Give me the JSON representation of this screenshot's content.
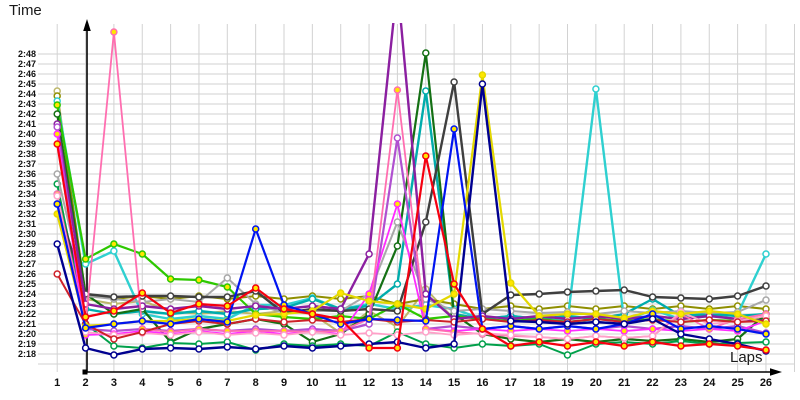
{
  "chart_data": {
    "type": "line",
    "title": "",
    "xlabel": "Laps",
    "ylabel": "Time",
    "grid": true,
    "legend": "none",
    "x_ticks": [
      1,
      2,
      3,
      4,
      5,
      6,
      7,
      8,
      9,
      10,
      11,
      12,
      13,
      14,
      15,
      16,
      17,
      18,
      19,
      20,
      21,
      22,
      23,
      24,
      25,
      26
    ],
    "y_ticks": [
      "2:18",
      "2:19",
      "2:20",
      "2:21",
      "2:22",
      "2:23",
      "2:24",
      "2:25",
      "2:26",
      "2:27",
      "2:28",
      "2:29",
      "2:30",
      "2:31",
      "2:32",
      "2:33",
      "2:34",
      "2:35",
      "2:36",
      "2:37",
      "2:38",
      "2:39",
      "2:40",
      "2:41",
      "2:42",
      "2:43",
      "2:44",
      "2:45",
      "2:46",
      "2:47",
      "2:48"
    ],
    "y_axis": {
      "min_seconds": 138,
      "max_seconds": 168,
      "unit": "minutes:seconds lap time"
    },
    "colors": {
      "grid": "#d2d2d2",
      "axis": "#000000",
      "marker_center_yellow": "#ffe600",
      "marker_center_white": "#ffffff"
    },
    "series": [
      {
        "name": "khaki",
        "color": "#BDB76B",
        "width": 2,
        "marker_fill": "#ffffff",
        "values": [
          164.3,
          143.5,
          143,
          143.3,
          142.3,
          142,
          142.3,
          142,
          142.3,
          142,
          140.1,
          142.3,
          140.7,
          144.5,
          141.5,
          141.8,
          141.5,
          141.8,
          141.5,
          141.8,
          141.5,
          141.8,
          141.5,
          141.8,
          141.5,
          141.7
        ]
      },
      {
        "name": "olive",
        "color": "#8F8F00",
        "width": 2,
        "marker_fill": "#ffffff",
        "values": [
          163.8,
          144,
          143.5,
          143.8,
          143.5,
          143.8,
          143.5,
          143.8,
          143.5,
          143.8,
          143.5,
          143.8,
          143,
          143.5,
          143,
          142.5,
          142.8,
          142.5,
          142.8,
          142.5,
          142.8,
          142.5,
          142.8,
          142.5,
          142.8,
          142.5
        ]
      },
      {
        "name": "cyan",
        "color": "#2FD0D0",
        "width": 2.4,
        "marker_fill": "#ffffff",
        "values": [
          163.3,
          147,
          148.3,
          142,
          141.5,
          141.8,
          141.5,
          142.9,
          142.9,
          143.6,
          142.5,
          143,
          142.5,
          142.9,
          142.5,
          141.5,
          141.8,
          141.5,
          141.3,
          164.5,
          141.3,
          142.4,
          141.5,
          141.8,
          142,
          148
        ]
      },
      {
        "name": "teal",
        "color": "#00ACAC",
        "width": 2.4,
        "marker_fill": "#ffffff",
        "values": [
          154,
          142.5,
          142,
          142.3,
          142,
          142.3,
          142,
          142.5,
          142.6,
          143.5,
          142.5,
          142.8,
          145,
          164.3,
          142,
          141.5,
          141.8,
          141.5,
          141.8,
          141.5,
          142,
          143.5,
          141.8,
          142,
          141.8,
          142
        ]
      },
      {
        "name": "lime",
        "color": "#2DC800",
        "width": 2.2,
        "marker_fill": "#ffe600",
        "values": [
          162.9,
          147.5,
          149,
          148,
          145.5,
          145.4,
          144.7,
          142,
          141.7,
          141.5,
          141.8,
          141.5,
          143,
          141.5,
          141.8,
          141.5,
          141.3,
          141.5,
          141.2,
          141.5,
          141.3,
          141.5,
          141.2,
          141.4,
          141.3,
          141.5
        ]
      },
      {
        "name": "darkgreen",
        "color": "#147014",
        "width": 2.2,
        "marker_fill": "#ffffff",
        "values": [
          162,
          144,
          142,
          142.5,
          139.2,
          140.5,
          141,
          141.5,
          141,
          139.2,
          140,
          142,
          148.8,
          168.1,
          142,
          140,
          139.5,
          139.2,
          139.5,
          139.2,
          139.5,
          139.3,
          139.5,
          139.2,
          139.5,
          142
        ]
      },
      {
        "name": "green",
        "color": "#00A04A",
        "width": 2,
        "marker_fill": "#ffffff",
        "values": [
          155,
          141,
          138.8,
          138.6,
          139.1,
          139,
          139.2,
          138.4,
          139,
          138.8,
          139,
          138.8,
          140.2,
          139,
          138.6,
          139,
          138.8,
          139,
          137.9,
          139,
          139.2,
          139,
          139.3,
          139,
          139.1,
          139.2
        ]
      },
      {
        "name": "gray",
        "color": "#A8A8A8",
        "width": 2,
        "marker_fill": "#ffffff",
        "values": [
          156,
          143.8,
          143.5,
          143.2,
          143.5,
          143.2,
          145.6,
          143,
          142.1,
          142.3,
          142.3,
          144,
          151.2,
          143.5,
          142.3,
          142.5,
          142.3,
          142.1,
          142.2,
          142,
          142.3,
          142.1,
          142.3,
          142.1,
          142.2,
          143.4
        ]
      },
      {
        "name": "black",
        "color": "#3F3F3F",
        "width": 2.4,
        "marker_fill": "#ffffff",
        "values": [
          153,
          144,
          143.7,
          143.8,
          143.8,
          143.7,
          143.7,
          144.3,
          142.1,
          142.5,
          142.3,
          142.5,
          142.3,
          151.2,
          165.2,
          142,
          143.9,
          144,
          144.2,
          144.3,
          144.4,
          143.7,
          143.6,
          143.5,
          143.8,
          144.8
        ]
      },
      {
        "name": "purple",
        "color": "#8B1FA0",
        "width": 2.4,
        "marker_fill": "#ffffff",
        "values": [
          161,
          143,
          142.5,
          142.8,
          142.5,
          142.8,
          142.5,
          142.8,
          142.5,
          142.8,
          142.5,
          148,
          175,
          144,
          141.5,
          141.8,
          141.5,
          141.8,
          141.5,
          141.8,
          141.5,
          141.8,
          141.5,
          141.8,
          141.5,
          141.3
        ]
      },
      {
        "name": "orchid",
        "color": "#B050D0",
        "width": 2.2,
        "marker_fill": "#ffffff",
        "values": [
          160.7,
          140.5,
          140.3,
          140.5,
          140.3,
          140.5,
          140.3,
          140.5,
          140.3,
          140.5,
          140.3,
          141,
          159.6,
          140.5,
          140.8,
          140.5,
          140.8,
          140.5,
          140.8,
          140.5,
          140.8,
          140.5,
          140.8,
          140.5,
          140.8,
          140.1
        ]
      },
      {
        "name": "magenta",
        "color": "#FF2BFF",
        "width": 1.8,
        "marker_fill": "#ffe600",
        "values": [
          160,
          139.9,
          140,
          140.3,
          140,
          140.3,
          140,
          140.3,
          140,
          140.3,
          140,
          144,
          153,
          140.5,
          140.3,
          140.5,
          140.3,
          140.5,
          140.3,
          140.5,
          140.3,
          140.5,
          140.3,
          140.5,
          140.3,
          141.3
        ]
      },
      {
        "name": "hotpink",
        "color": "#FF6EB0",
        "width": 1.8,
        "marker_fill": "#ffe600",
        "values": [
          154,
          141,
          170.2,
          140.5,
          140.2,
          140.5,
          140.3,
          140.3,
          140.3,
          140.2,
          140.3,
          141.5,
          164.4,
          140.5,
          140.2,
          140,
          139.8,
          139.7,
          139.5,
          139.8,
          139.6,
          139.8,
          142,
          140.5,
          141.5,
          142
        ]
      },
      {
        "name": "lightpink",
        "color": "#FFA0C8",
        "width": 1.8,
        "marker_fill": "#ffffff",
        "values": [
          153.8,
          140.2,
          139.9,
          140.1,
          139.9,
          140.2,
          139.9,
          140.1,
          139.9,
          140.2,
          139.9,
          140.1,
          139.9,
          140.2,
          139.9,
          140.1,
          139.9,
          139.7,
          139.5,
          139.8,
          139.6,
          139.8,
          142.2,
          141,
          141.3,
          141.8
        ]
      },
      {
        "name": "crimson",
        "color": "#CE2029",
        "width": 2,
        "marker_fill": "#ffffff",
        "values": [
          146,
          141,
          139.5,
          140.2,
          141,
          141.3,
          141,
          141.5,
          141.2,
          141.4,
          141.2,
          141.5,
          141.2,
          141.4,
          141.2,
          141.5,
          141.2,
          141.4,
          141.2,
          141.5,
          141.2,
          141.4,
          141.2,
          141.4,
          141.2,
          141.3
        ]
      },
      {
        "name": "yellow",
        "color": "#E3D800",
        "width": 2.2,
        "marker_fill": "#ffe600",
        "values": [
          152,
          140.8,
          141,
          141.3,
          141.3,
          141.5,
          141.3,
          141.9,
          142,
          142.3,
          144.1,
          143.3,
          143,
          142.5,
          144,
          165.9,
          145.1,
          141.8,
          142,
          142,
          141.6,
          142.3,
          142,
          142.3,
          142,
          141
        ]
      },
      {
        "name": "blue",
        "color": "#0014F0",
        "width": 2.2,
        "marker_fill": "#ffe600",
        "values": [
          153,
          140.6,
          141,
          141.3,
          141,
          141.5,
          141.2,
          150.5,
          142.9,
          142,
          141,
          141.5,
          141.4,
          141.3,
          160.5,
          140.5,
          140.8,
          140.5,
          140.8,
          140.5,
          141,
          142,
          140.5,
          140.8,
          140.5,
          140
        ]
      },
      {
        "name": "navy",
        "color": "#000090",
        "width": 2.4,
        "marker_fill": "#ffffff",
        "values": [
          149,
          138.6,
          137.9,
          138.5,
          138.6,
          138.5,
          138.7,
          138.5,
          138.8,
          138.6,
          138.8,
          139,
          139.2,
          138.6,
          139,
          165,
          141.3,
          141.2,
          141,
          141.2,
          141,
          141.5,
          140,
          139.5,
          139,
          138.3
        ]
      },
      {
        "name": "red",
        "color": "#F50010",
        "width": 2.2,
        "marker_fill": "#ffe600",
        "values": [
          159,
          141.7,
          142.3,
          144.1,
          142.1,
          143,
          142.8,
          144.6,
          142.5,
          142,
          141.5,
          138.6,
          138.6,
          157.8,
          145,
          140.5,
          138.8,
          139.2,
          138.8,
          139.2,
          138.8,
          139.2,
          138.8,
          139,
          138.8,
          138.4
        ]
      }
    ]
  }
}
